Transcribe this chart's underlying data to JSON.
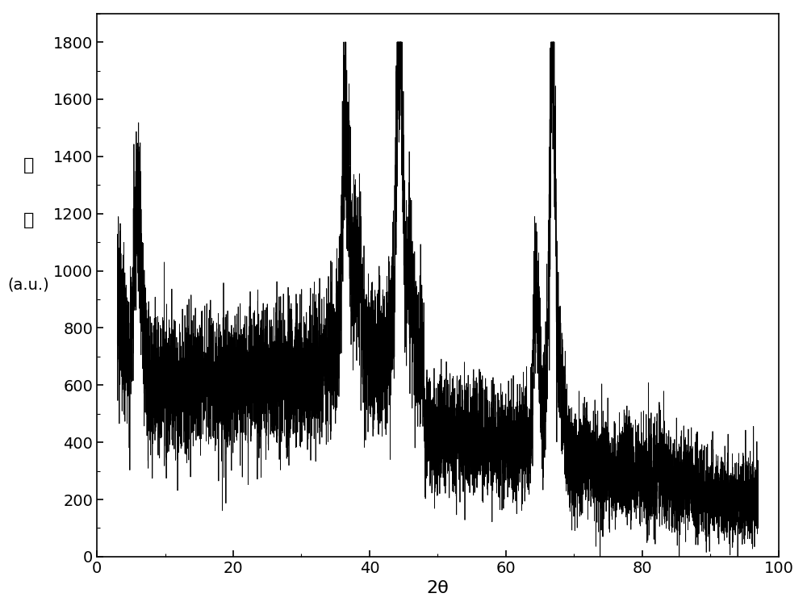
{
  "title": "",
  "xlabel": "2θ",
  "ylabel_line1": "强",
  "ylabel_line2": "度",
  "ylabel_line3": "(a.u.)",
  "xlim": [
    0,
    100
  ],
  "ylim": [
    0,
    1900
  ],
  "xticks": [
    0,
    20,
    40,
    60,
    80,
    100
  ],
  "yticks": [
    0,
    200,
    400,
    600,
    800,
    1000,
    1200,
    1400,
    1600,
    1800
  ],
  "line_color": "#000000",
  "background_color": "#ffffff",
  "figsize": [
    10.0,
    7.56
  ],
  "dpi": 100
}
